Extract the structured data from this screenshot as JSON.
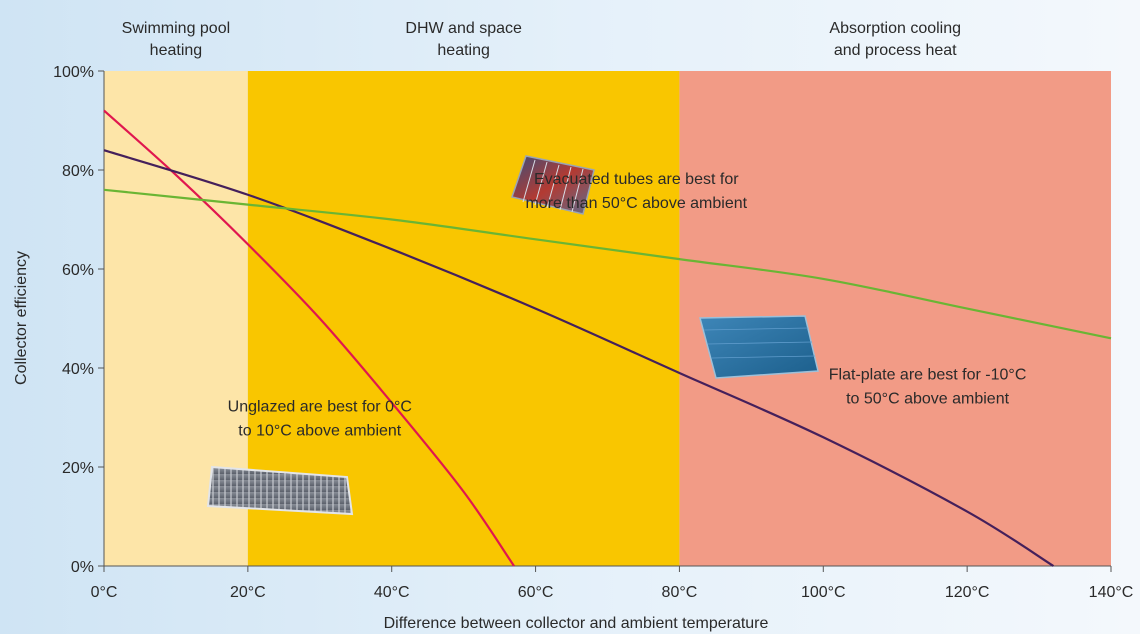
{
  "chart_data": {
    "type": "line",
    "title": "",
    "xlabel": "Difference between collector and ambient temperature",
    "ylabel": "Collector efficiency",
    "xlim": [
      0,
      140
    ],
    "ylim": [
      0,
      100
    ],
    "x_ticks": [
      0,
      20,
      40,
      60,
      80,
      100,
      120,
      140
    ],
    "x_tick_labels": [
      "0°C",
      "20°C",
      "40°C",
      "60°C",
      "80°C",
      "100°C",
      "120°C",
      "140°C"
    ],
    "y_ticks": [
      0,
      20,
      40,
      60,
      80,
      100
    ],
    "y_tick_labels": [
      "0%",
      "20%",
      "40%",
      "60%",
      "80%",
      "100%"
    ],
    "regions": [
      {
        "label": [
          "Swimming pool",
          "heating"
        ],
        "x_start": 0,
        "x_end": 20,
        "color": "#fde5a8"
      },
      {
        "label": [
          "DHW and space",
          "heating"
        ],
        "x_start": 20,
        "x_end": 80,
        "color": "#f9c600"
      },
      {
        "label": [
          "Absorption cooling",
          "and process heat"
        ],
        "x_start": 80,
        "x_end": 140,
        "color": "#f29b86"
      }
    ],
    "series": [
      {
        "color": "#e0174f",
        "x": [
          0,
          10,
          20,
          30,
          40,
          50,
          57
        ],
        "y": [
          92,
          79,
          65,
          50,
          33,
          15,
          0
        ]
      },
      {
        "color": "#45205b",
        "x": [
          0,
          20,
          40,
          60,
          80,
          100,
          120,
          132
        ],
        "y": [
          84,
          75,
          64,
          52,
          39,
          26,
          11,
          0
        ]
      },
      {
        "color": "#6ab534",
        "x": [
          0,
          20,
          40,
          60,
          80,
          100,
          120,
          140
        ],
        "y": [
          76,
          73,
          70,
          66,
          62,
          58,
          52,
          46
        ]
      }
    ],
    "annotations": [
      {
        "lines": [
          "Unglazed are best for 0°C",
          "to 10°C above ambient"
        ],
        "x": 30,
        "y": 30,
        "icon": "unglazed-collector-image"
      },
      {
        "lines": [
          "Evacuated tubes are best for",
          "more than 50°C above ambient"
        ],
        "x": 74,
        "y": 76,
        "icon": "evacuated-tube-collector-image"
      },
      {
        "lines": [
          "Flat-plate are best for -10°C",
          "to 50°C above ambient"
        ],
        "x": 114.5,
        "y": 36.5,
        "icon": "flat-plate-collector-image"
      }
    ],
    "grid": false,
    "legend": "none"
  }
}
